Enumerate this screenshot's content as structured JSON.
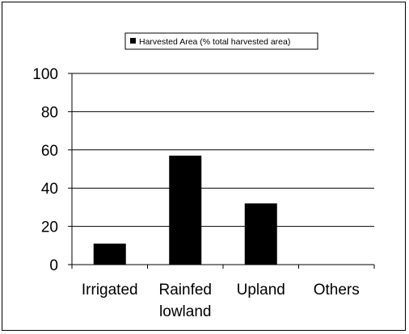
{
  "chart_data": {
    "type": "bar",
    "title": "",
    "xlabel": "",
    "ylabel": "",
    "categories": [
      [
        "Irrigated"
      ],
      [
        "Rainfed",
        "lowland"
      ],
      [
        "Upland"
      ],
      [
        "Others"
      ]
    ],
    "series": [
      {
        "name": "Harvested Area (% total harvested area)",
        "values": [
          11,
          57,
          32,
          0
        ],
        "color": "#000000"
      }
    ],
    "ylim": [
      0,
      100
    ],
    "yticks": [
      0,
      20,
      40,
      60,
      80,
      100
    ],
    "grid": true,
    "legend_position": "top-center"
  }
}
